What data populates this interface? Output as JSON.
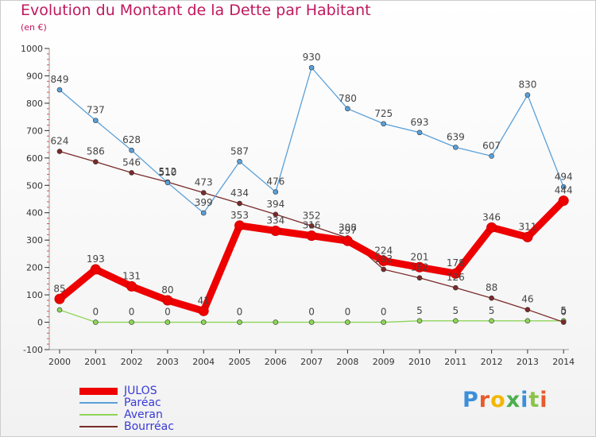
{
  "title": "Evolution du Montant de la Dette par Habitant",
  "subtitle": "(en €)",
  "logo": {
    "text": "Proxiti",
    "letter_colors": [
      "#3b8fd9",
      "#e85a2a",
      "#f2b705",
      "#4caf50",
      "#3b8fd9",
      "#8bc34a",
      "#e85a2a"
    ]
  },
  "chart_data": {
    "type": "line",
    "x": [
      "2000",
      "2001",
      "2002",
      "2003",
      "2004",
      "2005",
      "2006",
      "2007",
      "2008",
      "2009",
      "2010",
      "2011",
      "2012",
      "2013",
      "2014"
    ],
    "ylim": [
      -100,
      1000
    ],
    "yticks": [
      "-100",
      "0",
      "100",
      "200",
      "300",
      "400",
      "500",
      "600",
      "700",
      "800",
      "900",
      "1000"
    ],
    "grid": false,
    "legend_position": "bottom-left",
    "series": [
      {
        "name": "JULOS",
        "color": "#ee0000",
        "values": [
          85,
          193,
          131,
          80,
          41,
          353,
          334,
          316,
          297,
          224,
          201,
          178,
          346,
          311,
          444
        ],
        "labels": [
          "85",
          "193",
          "131",
          "80",
          "41",
          "353",
          "334",
          "316",
          "297",
          "224",
          "201",
          "178",
          "346",
          "311",
          "444"
        ]
      },
      {
        "name": "Paréac",
        "color": "#5aa0d8",
        "values": [
          849,
          737,
          628,
          510,
          399,
          587,
          476,
          930,
          780,
          725,
          693,
          639,
          607,
          830,
          494
        ],
        "labels": [
          "849",
          "737",
          "628",
          "510",
          "399",
          "587",
          "476",
          "930",
          "780",
          "725",
          "693",
          "639",
          "607",
          "830",
          "494"
        ]
      },
      {
        "name": "Averan",
        "color": "#8ed45a",
        "values": [
          45,
          0,
          0,
          0,
          0,
          0,
          0,
          0,
          0,
          0,
          5,
          5,
          5,
          5,
          5
        ],
        "labels": [
          "",
          "0",
          "0",
          "0",
          "",
          "0",
          "",
          "0",
          "0",
          "0",
          "5",
          "5",
          "5",
          "",
          "5"
        ]
      },
      {
        "name": "Bourréac",
        "color": "#7a2a2a",
        "values": [
          624,
          586,
          546,
          512,
          473,
          434,
          394,
          352,
          308,
          193,
          162,
          126,
          88,
          46,
          0
        ],
        "labels": [
          "624",
          "586",
          "546",
          "512",
          "473",
          "434",
          "394",
          "352",
          "308",
          "193",
          "162",
          "126",
          "88",
          "46",
          "0"
        ]
      }
    ]
  }
}
